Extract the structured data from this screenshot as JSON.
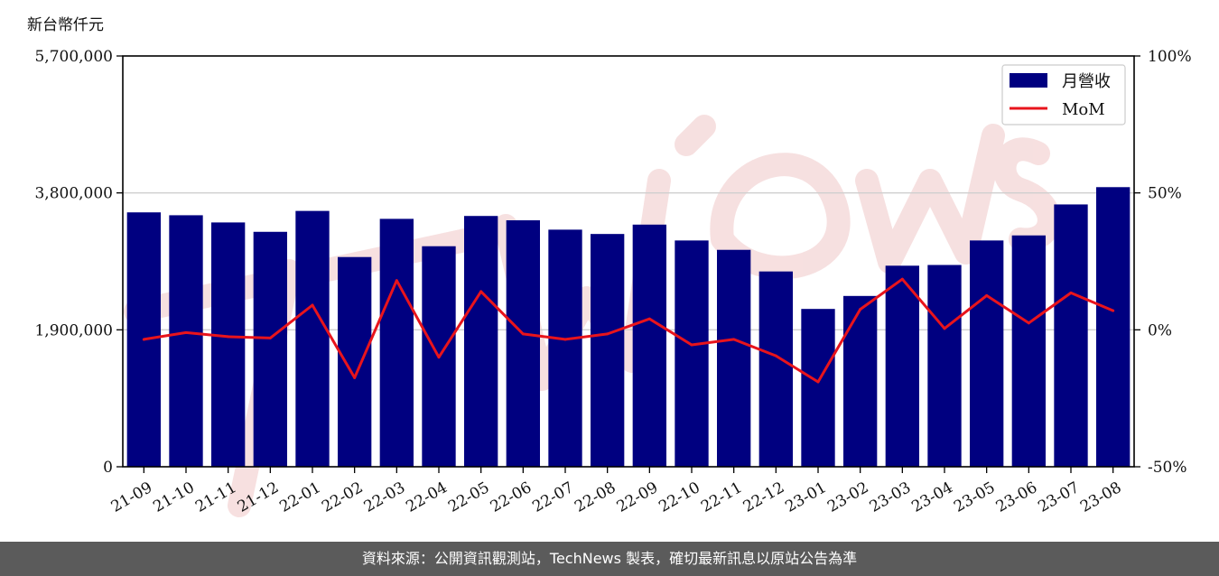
{
  "chart_data": {
    "type": "bar",
    "unit_label": "新台幣仟元",
    "categories": [
      "21-09",
      "21-10",
      "21-11",
      "21-12",
      "22-01",
      "22-02",
      "22-03",
      "22-04",
      "22-05",
      "22-06",
      "22-07",
      "22-08",
      "22-09",
      "22-10",
      "22-11",
      "22-12",
      "23-01",
      "23-02",
      "23-03",
      "23-04",
      "23-05",
      "23-06",
      "23-07",
      "23-08"
    ],
    "series": [
      {
        "name": "月營收",
        "type": "bar",
        "axis": "left",
        "color": "#000080",
        "values": [
          3530000,
          3490000,
          3390000,
          3260000,
          3550000,
          2910000,
          3440000,
          3060000,
          3480000,
          3420000,
          3290000,
          3230000,
          3360000,
          3140000,
          3010000,
          2710000,
          2190000,
          2370000,
          2790000,
          2800000,
          3140000,
          3210000,
          3640000,
          3880000
        ]
      },
      {
        "name": "MoM",
        "type": "line",
        "axis": "right",
        "color": "#e8141c",
        "values": [
          -3.5,
          -1,
          -2.5,
          -3,
          9,
          -17.5,
          18,
          -10,
          14,
          -1.5,
          -3.5,
          -1.5,
          4,
          -5.5,
          -3.5,
          -9.5,
          -19,
          7.5,
          18.5,
          0.5,
          12.5,
          2.5,
          13.5,
          7
        ]
      }
    ],
    "y_left": {
      "ylim": [
        0,
        5700000
      ],
      "ticks": [
        0,
        1900000,
        3800000,
        5700000
      ],
      "tick_labels": [
        "0",
        "1,900,000",
        "3,800,000",
        "5,700,000"
      ]
    },
    "y_right": {
      "ylim": [
        -50,
        100
      ],
      "ticks": [
        -50,
        0,
        50,
        100
      ],
      "tick_labels": [
        "-50%",
        "0%",
        "50%",
        "100%"
      ]
    },
    "grid": "horizontal",
    "legend_position": "top-right",
    "watermark": "TechNews"
  },
  "footer": {
    "source_note": "資料來源：公開資訊觀測站，TechNews 製表，確切最新訊息以原站公告為準"
  }
}
